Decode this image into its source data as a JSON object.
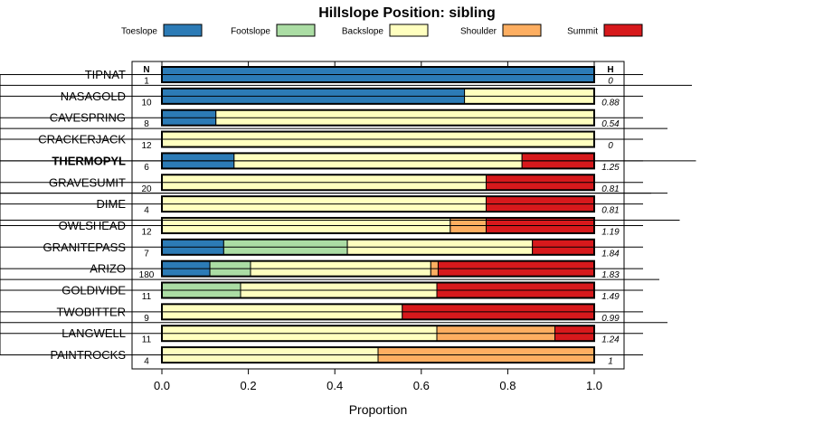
{
  "chart_data": {
    "type": "bar",
    "orientation": "horizontal",
    "stacked": true,
    "title": "Hillslope Position: sibling",
    "xlabel": "Proportion",
    "ylabel": "",
    "xlim": [
      0,
      1
    ],
    "x_ticks": [
      0,
      0.2,
      0.4,
      0.6,
      0.8,
      1
    ],
    "x_tick_labels": [
      "0.0",
      "0.2",
      "0.4",
      "0.6",
      "0.8",
      "1.0"
    ],
    "n_header": "N",
    "h_header": "H",
    "legend": [
      {
        "name": "Toeslope",
        "color": "#2c7bb6"
      },
      {
        "name": "Footslope",
        "color": "#abdda4"
      },
      {
        "name": "Backslope",
        "color": "#ffffbf"
      },
      {
        "name": "Shoulder",
        "color": "#fdae61"
      },
      {
        "name": "Summit",
        "color": "#d7191c"
      }
    ],
    "categories": [
      "TIPNAT",
      "NASAGOLD",
      "CAVESPRING",
      "CRACKERJACK",
      "THERMOPYL",
      "GRAVESUMIT",
      "DIME",
      "OWLSHEAD",
      "GRANITEPASS",
      "ARIZO",
      "GOLDIVIDE",
      "TWOBITTER",
      "LANGWELL",
      "PAINTROCKS"
    ],
    "highlight": "THERMOPYL",
    "n": [
      "1",
      "10",
      "8",
      "12",
      "6",
      "20",
      "4",
      "12",
      "7",
      "180",
      "11",
      "9",
      "11",
      "4"
    ],
    "h": [
      "0",
      "0.88",
      "0.54",
      "0",
      "1.25",
      "0.81",
      "0.81",
      "1.19",
      "1.84",
      "1.83",
      "1.49",
      "0.99",
      "1.24",
      "1"
    ],
    "series": [
      {
        "name": "Toeslope",
        "values": [
          1.0,
          0.7,
          0.125,
          0,
          0.167,
          0,
          0,
          0,
          0.143,
          0.111,
          0,
          0,
          0,
          0
        ]
      },
      {
        "name": "Footslope",
        "values": [
          0,
          0,
          0,
          0,
          0,
          0,
          0,
          0,
          0.286,
          0.094,
          0.182,
          0,
          0,
          0
        ]
      },
      {
        "name": "Backslope",
        "values": [
          0,
          0.3,
          0.875,
          1.0,
          0.666,
          0.75,
          0.75,
          0.667,
          0.428,
          0.417,
          0.454,
          0.556,
          0.636,
          0.5
        ]
      },
      {
        "name": "Shoulder",
        "values": [
          0,
          0,
          0,
          0,
          0,
          0,
          0,
          0.083,
          0,
          0.017,
          0,
          0,
          0.273,
          0.5
        ]
      },
      {
        "name": "Summit",
        "values": [
          0,
          0,
          0,
          0,
          0.167,
          0.25,
          0.25,
          0.25,
          0.143,
          0.361,
          0.364,
          0.444,
          0.091,
          0
        ]
      }
    ],
    "dendrogram": {
      "type": "hierarchical-clustering",
      "merges": [
        {
          "a": 0,
          "b": 1,
          "height": 0.12
        },
        {
          "a": 2,
          "b": 3,
          "height": 0.06
        },
        {
          "a": 5,
          "b": 6,
          "height": 0.02
        },
        {
          "a": 4,
          "b": 7,
          "height": 0.06
        },
        {
          "a": 9,
          "b": 10,
          "height": 0.04
        },
        {
          "a": 11,
          "b": 12,
          "height": 0.06
        },
        {
          "a": 13,
          "b": 14,
          "height": 0.09
        },
        {
          "a": 15,
          "b": 16,
          "height": 0.13
        },
        {
          "a": 8,
          "b": 17,
          "height": 0.16
        },
        {
          "a": 18,
          "b": 19,
          "height": 0.19
        },
        {
          "a": 20,
          "b": 21,
          "height": 0.4
        }
      ]
    }
  }
}
